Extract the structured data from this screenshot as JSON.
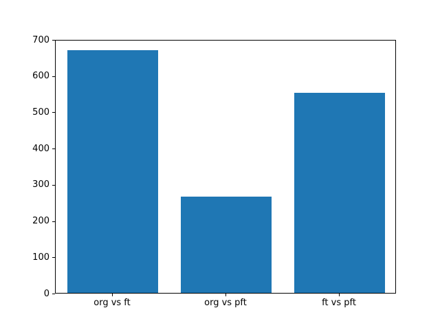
{
  "figure": {
    "background": "#ffffff",
    "title": ""
  },
  "chart_data": {
    "type": "bar",
    "categories": [
      "org vs ft",
      "org vs pft",
      "ft vs pft"
    ],
    "values": [
      670,
      265,
      552
    ],
    "title": "",
    "xlabel": "",
    "ylabel": "",
    "ylim": [
      0,
      700
    ],
    "yticks": [
      0,
      100,
      200,
      300,
      400,
      500,
      600,
      700
    ],
    "bar_color": "#1f77b4",
    "bar_width_fraction": 0.8,
    "grid": false,
    "legend_position": "none"
  }
}
